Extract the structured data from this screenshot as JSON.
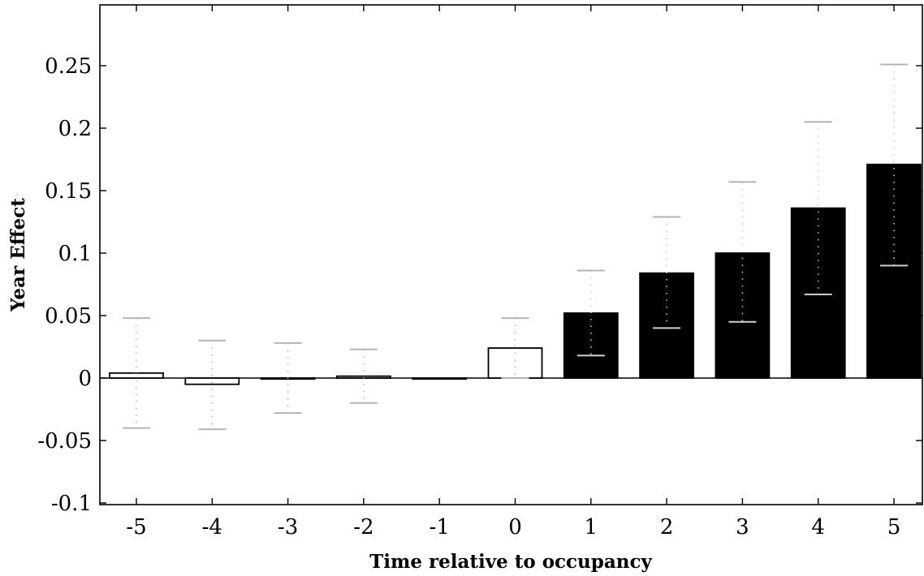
{
  "chart_data": {
    "type": "bar",
    "title": "",
    "xlabel": "Time relative to occupancy",
    "ylabel": "Year Effect",
    "categories": [
      "-5",
      "-4",
      "-3",
      "-2",
      "-1",
      "0",
      "1",
      "2",
      "3",
      "4",
      "5"
    ],
    "values": [
      0.004,
      -0.005,
      0.0,
      0.0015,
      0.0,
      0.024,
      0.052,
      0.084,
      0.1,
      0.136,
      0.171
    ],
    "ci_upper": [
      0.048,
      0.03,
      0.028,
      0.023,
      null,
      0.048,
      0.086,
      0.129,
      0.157,
      0.205,
      0.251
    ],
    "ci_lower": [
      -0.04,
      -0.041,
      -0.028,
      -0.02,
      null,
      0.0,
      0.018,
      0.04,
      0.045,
      0.067,
      0.09
    ],
    "filled": [
      false,
      false,
      false,
      false,
      false,
      false,
      true,
      true,
      true,
      true,
      true
    ],
    "ylim": [
      -0.1,
      0.3
    ],
    "yticks": [
      -0.1,
      -0.05,
      0,
      0.05,
      0.1,
      0.15,
      0.2,
      0.25
    ],
    "ytick_labels": [
      "-0.1",
      "-0.05",
      "0",
      "0.05",
      "0.1",
      "0.15",
      "0.2",
      "0.25"
    ],
    "grid": false,
    "colors": {
      "filled_bar": "#000000",
      "open_bar": "#ffffff",
      "error_bar": "#b4b4b4",
      "axis": "#000000"
    }
  }
}
